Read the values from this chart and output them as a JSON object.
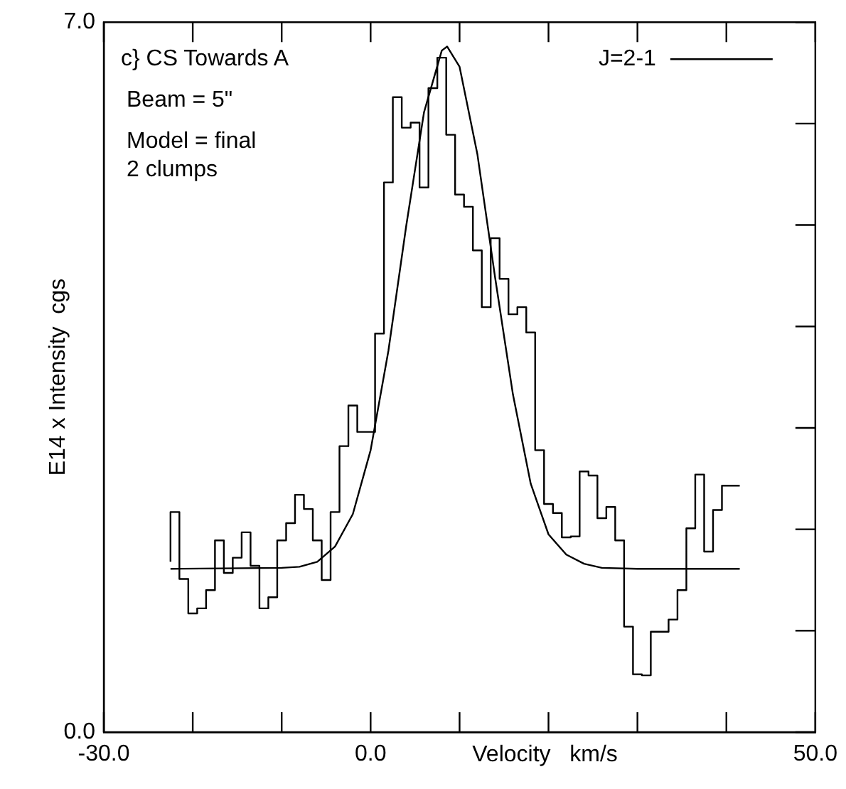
{
  "chart_data": {
    "type": "line",
    "xlabel": "Velocity   km/s",
    "ylabel": "E14 x Intensity  cgs",
    "annotations": [
      "c} CS Towards A",
      "Beam = 5\"",
      "Model = final",
      "2 clumps"
    ],
    "xlim": [
      -30,
      50
    ],
    "xticks": [
      {
        "value": -30,
        "label": "-30.0"
      },
      {
        "value": -20,
        "label": null
      },
      {
        "value": -10,
        "label": null
      },
      {
        "value": 0,
        "label": "0.0"
      },
      {
        "value": 10,
        "label": null
      },
      {
        "value": 20,
        "label": null
      },
      {
        "value": 30,
        "label": null
      },
      {
        "value": 40,
        "label": null
      },
      {
        "value": 50,
        "label": "50.0"
      }
    ],
    "ylim": [
      0,
      7
    ],
    "yticks": [
      {
        "value": 0,
        "label": "0.0"
      },
      {
        "value": 1,
        "label": null
      },
      {
        "value": 2,
        "label": null
      },
      {
        "value": 3,
        "label": null
      },
      {
        "value": 4,
        "label": null
      },
      {
        "value": 5,
        "label": null
      },
      {
        "value": 6,
        "label": null
      },
      {
        "value": 7,
        "label": "7.0"
      }
    ],
    "grid": false,
    "legend": "top right",
    "marker": "none",
    "line_style": "solid",
    "series": [
      {
        "type": "step",
        "color": "#000000",
        "x": [
          -22.5,
          -21.5,
          -20.5,
          -19.5,
          -18.5,
          -17.5,
          -16.5,
          -15.5,
          -14.5,
          -13.5,
          -12.5,
          -11.5,
          -10.5,
          -9.5,
          -8.5,
          -7.5,
          -6.5,
          -5.5,
          -4.5,
          -3.5,
          -2.5,
          -1.5,
          -0.5,
          0.5,
          1.5,
          2.5,
          3.5,
          4.5,
          5.5,
          6.5,
          7.5,
          8.5,
          9.5,
          10.5,
          11.5,
          12.5,
          13.5,
          14.5,
          15.5,
          16.5,
          17.5,
          18.5,
          19.5,
          20.5,
          21.5,
          22.5,
          23.5,
          24.5,
          25.5,
          26.5,
          27.5,
          28.5,
          29.5,
          30.5,
          31.5,
          32.5,
          33.5,
          34.5,
          35.5,
          36.5,
          37.5,
          38.5,
          39.5,
          40.5,
          41.5
        ],
        "values": [
          1.68,
          2.17,
          1.51,
          1.17,
          1.22,
          1.4,
          1.89,
          1.57,
          1.72,
          1.97,
          1.64,
          1.22,
          1.33,
          1.89,
          2.06,
          2.34,
          2.2,
          1.89,
          1.5,
          2.17,
          2.82,
          3.22,
          2.96,
          2.96,
          3.93,
          5.42,
          6.26,
          5.96,
          6.01,
          5.37,
          6.35,
          6.65,
          5.89,
          5.3,
          5.18,
          4.75,
          4.19,
          4.87,
          4.47,
          4.12,
          4.19,
          3.94,
          2.78,
          2.25,
          2.16,
          1.92,
          1.93,
          2.57,
          2.53,
          2.11,
          2.22,
          1.89,
          1.04,
          0.57,
          0.56,
          0.99,
          0.99,
          1.11,
          1.4,
          2.01,
          2.54,
          1.78,
          2.19,
          2.43,
          2.43
        ]
      },
      {
        "name": "J=2-1",
        "color": "#000000",
        "x": [
          -22.5,
          -10,
          -8,
          -6,
          -4,
          -2,
          0,
          2,
          4,
          6,
          8,
          8.6,
          10,
          12,
          14,
          16,
          18,
          20,
          22,
          24,
          26,
          30,
          41.5
        ],
        "values": [
          1.61,
          1.62,
          1.63,
          1.68,
          1.83,
          2.15,
          2.78,
          3.76,
          4.99,
          6.11,
          6.72,
          6.76,
          6.56,
          5.7,
          4.48,
          3.33,
          2.45,
          1.95,
          1.75,
          1.66,
          1.62,
          1.61,
          1.61
        ]
      }
    ]
  }
}
